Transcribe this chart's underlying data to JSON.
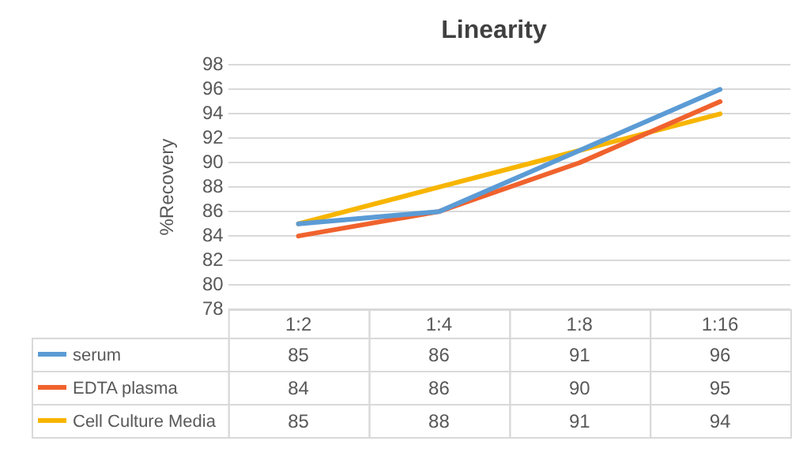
{
  "chart_data": {
    "type": "line",
    "title": "Linearity",
    "ylabel": "%Recovery",
    "categories": [
      "1:2",
      "1:4",
      "1:8",
      "1:16"
    ],
    "series": [
      {
        "name": "serum",
        "color": "#5b9bd5",
        "values": [
          85,
          86,
          91,
          96
        ]
      },
      {
        "name": "EDTA plasma",
        "color": "#f0622d",
        "values": [
          84,
          86,
          90,
          95
        ]
      },
      {
        "name": "Cell Culture Media",
        "color": "#f7b500",
        "values": [
          85,
          88,
          91,
          94
        ]
      }
    ],
    "ylim": [
      78,
      98
    ],
    "yticks": [
      78,
      80,
      82,
      84,
      86,
      88,
      90,
      92,
      94,
      96,
      98
    ],
    "grid": "y",
    "legend": "bottom",
    "data_labels": true,
    "marker": "none",
    "line_style": "solid"
  }
}
